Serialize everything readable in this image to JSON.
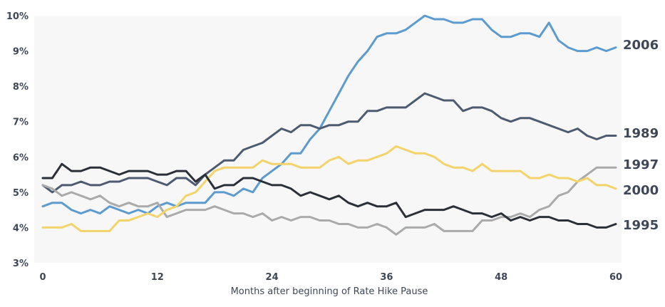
{
  "chart_data": {
    "type": "line",
    "title": "",
    "xlabel": "Months after beginning of Rate Hike Pause",
    "ylabel": "",
    "xlim": [
      0,
      60
    ],
    "ylim": [
      3,
      10
    ],
    "x_ticks": [
      0,
      12,
      24,
      36,
      48,
      60
    ],
    "y_ticks": [
      3,
      4,
      5,
      6,
      7,
      8,
      9,
      10
    ],
    "y_tick_labels": [
      "3%",
      "4%",
      "5%",
      "6%",
      "7%",
      "8%",
      "9%",
      "10%"
    ],
    "grid": false,
    "legend": "series labels at right end of lines",
    "x": [
      0,
      1,
      2,
      3,
      4,
      5,
      6,
      7,
      8,
      9,
      10,
      11,
      12,
      13,
      14,
      15,
      16,
      17,
      18,
      19,
      20,
      21,
      22,
      23,
      24,
      25,
      26,
      27,
      28,
      29,
      30,
      31,
      32,
      33,
      34,
      35,
      36,
      37,
      38,
      39,
      40,
      41,
      42,
      43,
      44,
      45,
      46,
      47,
      48,
      49,
      50,
      51,
      52,
      53,
      54,
      55,
      56,
      57,
      58,
      59,
      60
    ],
    "series": [
      {
        "name": "2006",
        "color": "#5b9bd0",
        "values": [
          4.6,
          4.7,
          4.7,
          4.5,
          4.4,
          4.5,
          4.4,
          4.6,
          4.5,
          4.4,
          4.5,
          4.4,
          4.6,
          4.7,
          4.6,
          4.7,
          4.7,
          4.7,
          5.0,
          5.0,
          4.9,
          5.1,
          5.0,
          5.4,
          5.6,
          5.8,
          6.1,
          6.1,
          6.5,
          6.8,
          7.3,
          7.8,
          8.3,
          8.7,
          9.0,
          9.4,
          9.5,
          9.5,
          9.6,
          9.8,
          10.0,
          9.9,
          9.9,
          9.8,
          9.8,
          9.9,
          9.9,
          9.6,
          9.4,
          9.4,
          9.5,
          9.5,
          9.4,
          9.8,
          9.3,
          9.1,
          9.0,
          9.0,
          9.1,
          9.0,
          9.1
        ]
      },
      {
        "name": "1989",
        "color": "#4d5b70",
        "values": [
          5.2,
          5.0,
          5.2,
          5.2,
          5.3,
          5.2,
          5.2,
          5.3,
          5.3,
          5.4,
          5.4,
          5.4,
          5.3,
          5.2,
          5.4,
          5.4,
          5.2,
          5.5,
          5.7,
          5.9,
          5.9,
          6.2,
          6.3,
          6.4,
          6.6,
          6.8,
          6.7,
          6.9,
          6.9,
          6.8,
          6.9,
          6.9,
          7.0,
          7.0,
          7.3,
          7.3,
          7.4,
          7.4,
          7.4,
          7.6,
          7.8,
          7.7,
          7.6,
          7.6,
          7.3,
          7.4,
          7.4,
          7.3,
          7.1,
          7.0,
          7.1,
          7.1,
          7.0,
          6.9,
          6.8,
          6.7,
          6.8,
          6.6,
          6.5,
          6.6,
          6.6
        ]
      },
      {
        "name": "1997",
        "color": "#aaaaaa",
        "values": [
          5.2,
          5.1,
          4.9,
          5.0,
          4.9,
          4.8,
          4.9,
          4.7,
          4.6,
          4.7,
          4.6,
          4.6,
          4.7,
          4.3,
          4.4,
          4.5,
          4.5,
          4.5,
          4.6,
          4.5,
          4.4,
          4.4,
          4.3,
          4.4,
          4.2,
          4.3,
          4.2,
          4.3,
          4.3,
          4.2,
          4.2,
          4.1,
          4.1,
          4.0,
          4.0,
          4.1,
          4.0,
          3.8,
          4.0,
          4.0,
          4.0,
          4.1,
          3.9,
          3.9,
          3.9,
          3.9,
          4.2,
          4.2,
          4.3,
          4.3,
          4.4,
          4.3,
          4.5,
          4.6,
          4.9,
          5.0,
          5.3,
          5.5,
          5.7,
          5.7,
          5.7
        ]
      },
      {
        "name": "2000",
        "color": "#f3d36a",
        "values": [
          4.0,
          4.0,
          4.0,
          4.1,
          3.9,
          3.9,
          3.9,
          3.9,
          4.2,
          4.2,
          4.3,
          4.4,
          4.3,
          4.5,
          4.6,
          4.9,
          5.0,
          5.3,
          5.6,
          5.7,
          5.7,
          5.7,
          5.7,
          5.9,
          5.8,
          5.8,
          5.8,
          5.7,
          5.7,
          5.7,
          5.9,
          6.0,
          5.8,
          5.9,
          5.9,
          6.0,
          6.1,
          6.3,
          6.2,
          6.1,
          6.1,
          6.0,
          5.8,
          5.7,
          5.7,
          5.6,
          5.8,
          5.6,
          5.6,
          5.6,
          5.6,
          5.4,
          5.4,
          5.5,
          5.4,
          5.4,
          5.3,
          5.4,
          5.2,
          5.2,
          5.1
        ]
      },
      {
        "name": "1995",
        "color": "#2b3038",
        "values": [
          5.4,
          5.4,
          5.8,
          5.6,
          5.6,
          5.7,
          5.7,
          5.6,
          5.5,
          5.6,
          5.6,
          5.6,
          5.5,
          5.5,
          5.6,
          5.6,
          5.3,
          5.5,
          5.1,
          5.2,
          5.2,
          5.4,
          5.4,
          5.3,
          5.2,
          5.2,
          5.1,
          4.9,
          5.0,
          4.9,
          4.8,
          4.9,
          4.7,
          4.6,
          4.7,
          4.6,
          4.6,
          4.7,
          4.3,
          4.4,
          4.5,
          4.5,
          4.5,
          4.6,
          4.5,
          4.4,
          4.4,
          4.3,
          4.4,
          4.2,
          4.3,
          4.2,
          4.3,
          4.3,
          4.2,
          4.2,
          4.1,
          4.1,
          4.0,
          4.0,
          4.1
        ]
      }
    ]
  }
}
